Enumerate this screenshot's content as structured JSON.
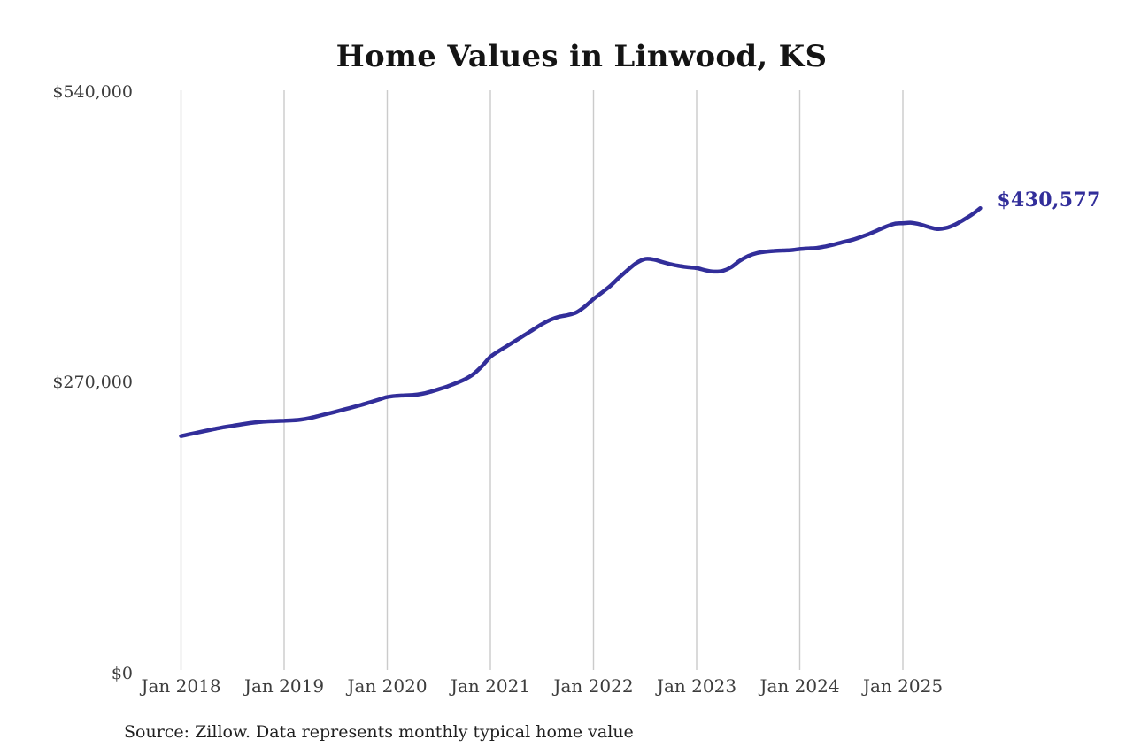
{
  "page": {
    "background_color": "#ffffff"
  },
  "chart_data": {
    "type": "line",
    "title": "Home Values in Linwood, KS",
    "source_note": "Source: Zillow. Data represents monthly typical home value",
    "end_label": "$430,577",
    "end_value": 430577,
    "line_color": "#322e9a",
    "grid_color": "#cbcbcb",
    "grid": "vertical-only",
    "legend": "none",
    "ylim": [
      0,
      540000
    ],
    "y_ticks": [
      {
        "label": "$0",
        "value": 0
      },
      {
        "label": "$270,000",
        "value": 270000
      },
      {
        "label": "$540,000",
        "value": 540000
      }
    ],
    "x_tick_labels": [
      "Jan 2018",
      "Jan 2019",
      "Jan 2020",
      "Jan 2021",
      "Jan 2022",
      "Jan 2023",
      "Jan 2024",
      "Jan 2025"
    ],
    "series": [
      {
        "name": "Monthly typical home value",
        "start_month": "2018-01",
        "end_month": "2025-10",
        "values": [
          218300,
          220000,
          221700,
          223400,
          225100,
          226600,
          227900,
          229200,
          230400,
          231300,
          232000,
          232300,
          232600,
          233000,
          233700,
          235100,
          237000,
          239000,
          241000,
          243100,
          245200,
          247400,
          249800,
          252300,
          254700,
          255700,
          256200,
          256600,
          257600,
          259500,
          262000,
          264600,
          267600,
          271100,
          275900,
          283300,
          292100,
          297600,
          302600,
          307500,
          312500,
          317600,
          322600,
          326700,
          329500,
          331000,
          333500,
          339000,
          346000,
          352100,
          358500,
          366100,
          373100,
          379600,
          383300,
          382800,
          380500,
          378300,
          376800,
          375600,
          374800,
          372800,
          371500,
          372100,
          375500,
          381500,
          386000,
          388700,
          390000,
          390800,
          391200,
          391500,
          392500,
          393100,
          393600,
          395000,
          396800,
          398900,
          400900,
          403500,
          406400,
          409800,
          413300,
          416000,
          416600,
          417000,
          415500,
          413000,
          411200,
          412100,
          415000,
          419500,
          424500,
          430577
        ]
      }
    ]
  }
}
